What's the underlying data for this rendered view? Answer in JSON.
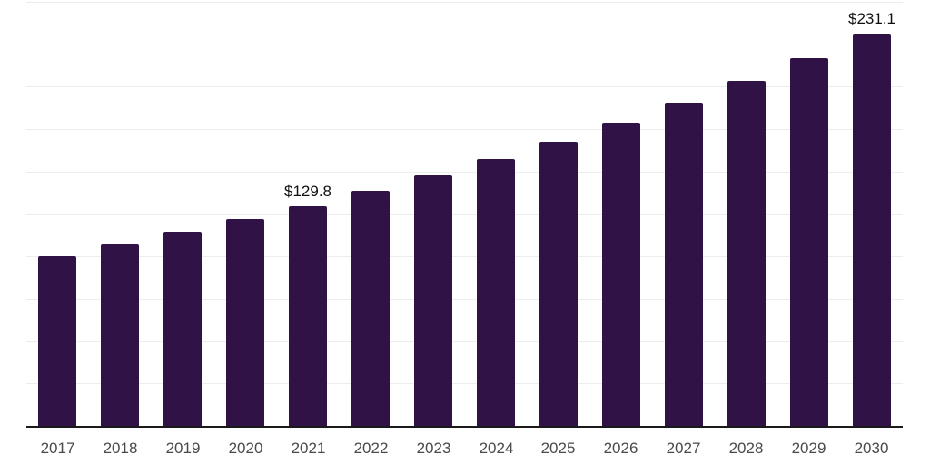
{
  "chart_data": {
    "type": "bar",
    "title": "",
    "xlabel": "",
    "ylabel": "",
    "categories": [
      "2017",
      "2018",
      "2019",
      "2020",
      "2021",
      "2022",
      "2023",
      "2024",
      "2025",
      "2026",
      "2027",
      "2028",
      "2029",
      "2030"
    ],
    "values": [
      100.1,
      107.2,
      114.3,
      121.9,
      129.8,
      138.4,
      147.6,
      157.3,
      167.7,
      178.8,
      190.7,
      203.3,
      216.8,
      231.1
    ],
    "data_labels": {
      "2021": "$129.8",
      "2030": "$231.1"
    },
    "ylim": [
      0,
      250
    ],
    "gridline_step": 25,
    "grid": true,
    "legend_position": "none",
    "colors": {
      "bar": "#311246",
      "gridline": "#ededed",
      "axis_line": "#1a1a1a",
      "x_tick_label": "#4a4a4a",
      "data_label": "#111111"
    }
  }
}
